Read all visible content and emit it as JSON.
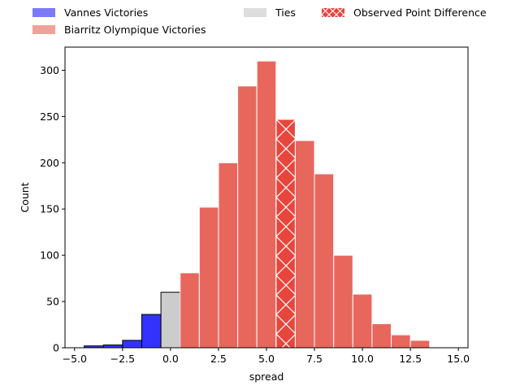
{
  "chart_data": {
    "type": "bar",
    "xlabel": "spread",
    "ylabel": "Count",
    "xlim": [
      -5.5,
      15.5
    ],
    "ylim": [
      0,
      325
    ],
    "bin_width": 1,
    "x_ticks": [
      -5.0,
      -2.5,
      0.0,
      2.5,
      5.0,
      7.5,
      10.0,
      12.5,
      15.0
    ],
    "x_tick_labels": [
      "−5.0",
      "−2.5",
      "0.0",
      "2.5",
      "5.0",
      "7.5",
      "10.0",
      "12.5",
      "15.0"
    ],
    "y_ticks": [
      0,
      50,
      100,
      150,
      200,
      250,
      300
    ],
    "y_tick_labels": [
      "0",
      "50",
      "100",
      "150",
      "200",
      "250",
      "300"
    ],
    "legend_placement": "top, above plot",
    "grid": false,
    "series": [
      {
        "name": "Vannes Victories",
        "color": "#3333ff",
        "bins": [
          {
            "x": -4,
            "count": 2
          },
          {
            "x": -3,
            "count": 3
          },
          {
            "x": -2,
            "count": 8
          },
          {
            "x": -1,
            "count": 36
          }
        ]
      },
      {
        "name": "Ties",
        "color": "#cccccc",
        "bins": [
          {
            "x": 0,
            "count": 60
          }
        ]
      },
      {
        "name": "Biarritz Olympique Victories",
        "color": "#e8675d",
        "bins": [
          {
            "x": 1,
            "count": 81
          },
          {
            "x": 2,
            "count": 152
          },
          {
            "x": 3,
            "count": 200
          },
          {
            "x": 4,
            "count": 283
          },
          {
            "x": 5,
            "count": 310
          },
          {
            "x": 6,
            "count": 247
          },
          {
            "x": 7,
            "count": 224
          },
          {
            "x": 8,
            "count": 188
          },
          {
            "x": 9,
            "count": 100
          },
          {
            "x": 10,
            "count": 58
          },
          {
            "x": 11,
            "count": 26
          },
          {
            "x": 12,
            "count": 14
          },
          {
            "x": 13,
            "count": 8
          }
        ]
      }
    ],
    "observed": {
      "name": "Observed Point Difference",
      "x": 6,
      "color": "#e8453c"
    },
    "legend": [
      {
        "label": "Vannes Victories",
        "swatch_color": "#7b7bf5",
        "hatched": false
      },
      {
        "label": "Biarritz Olympique Victories",
        "swatch_color": "#f0a19b",
        "hatched": false
      },
      {
        "label": "Ties",
        "swatch_color": "#dddddd",
        "hatched": false
      },
      {
        "label": "Observed Point Difference",
        "swatch_color": "#e8453c",
        "hatched": true
      }
    ]
  }
}
